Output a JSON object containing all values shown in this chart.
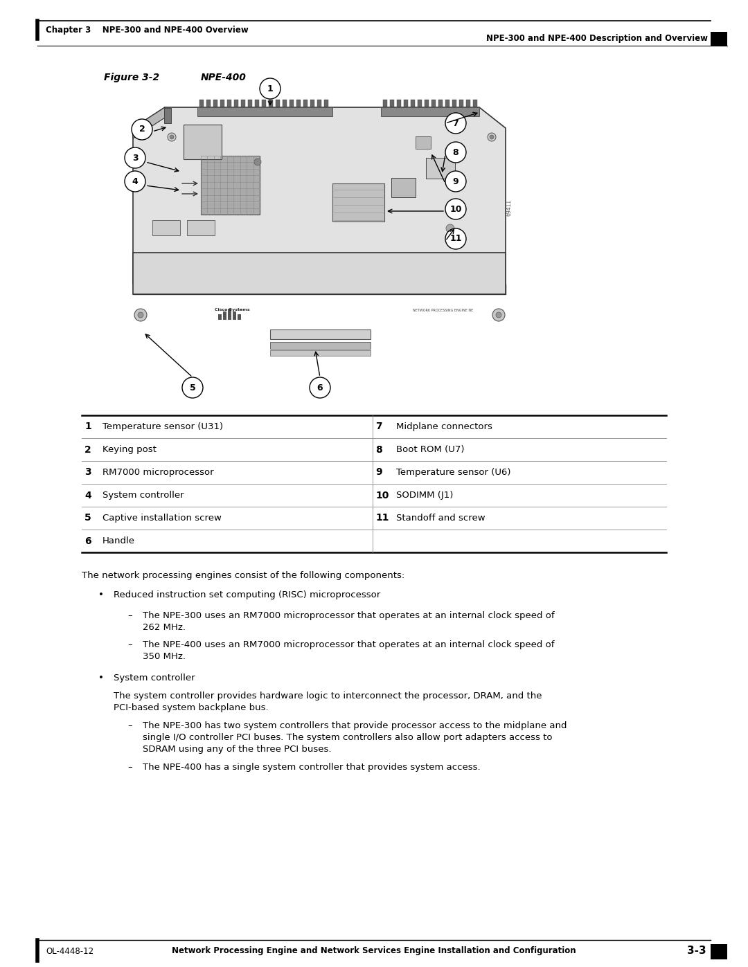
{
  "page_title_left": "Chapter 3    NPE-300 and NPE-400 Overview",
  "page_title_right": "NPE-300 and NPE-400 Description and Overview",
  "figure_label": "Figure 3-2",
  "figure_title": "NPE-400",
  "table_rows": [
    {
      "num": "1",
      "left": "Temperature sensor (U31)",
      "num2": "7",
      "right": "Midplane connectors"
    },
    {
      "num": "2",
      "left": "Keying post",
      "num2": "8",
      "right": "Boot ROM (U7)"
    },
    {
      "num": "3",
      "left": "RM7000 microprocessor",
      "num2": "9",
      "right": "Temperature sensor (U6)"
    },
    {
      "num": "4",
      "left": "System controller",
      "num2": "10",
      "right": "SODIMM (J1)"
    },
    {
      "num": "5",
      "left": "Captive installation screw",
      "num2": "11",
      "right": "Standoff and screw"
    },
    {
      "num": "6",
      "left": "Handle",
      "num2": "",
      "right": ""
    }
  ],
  "intro_text": "The network processing engines consist of the following components:",
  "bullet1": "Reduced instruction set computing (RISC) microprocessor",
  "sub1a_line1": "The NPE-300 uses an RM7000 microprocessor that operates at an internal clock speed of",
  "sub1a_line2": "262 MHz.",
  "sub1b_line1": "The NPE-400 uses an RM7000 microprocessor that operates at an internal clock speed of",
  "sub1b_line2": "350 MHz.",
  "bullet2": "System controller",
  "sub2_line1": "The system controller provides hardware logic to interconnect the processor, DRAM, and the",
  "sub2_line2": "PCI-based system backplane bus.",
  "sub2a_line1": "The NPE-300 has two system controllers that provide processor access to the midplane and",
  "sub2a_line2": "single I/O controller PCI buses. The system controllers also allow port adapters access to",
  "sub2a_line3": "SDRAM using any of the three PCI buses.",
  "sub2b_line1": "The NPE-400 has a single system controller that provides system access.",
  "footer_left": "OL-4448-12",
  "footer_center": "Network Processing Engine and Network Services Engine Installation and Configuration",
  "footer_right": "3-3",
  "bg_color": "#ffffff",
  "text_color": "#000000"
}
